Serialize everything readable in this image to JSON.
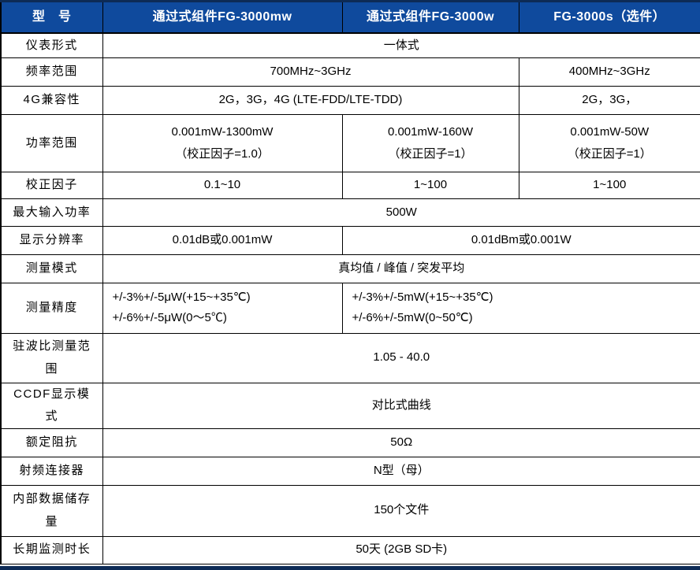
{
  "colors": {
    "header_bg": "#0f4a9d",
    "header_text": "#ffffff",
    "accent_navy": "#0d2b56",
    "border": "#000000",
    "body_text": "#000000"
  },
  "table": {
    "header": [
      "型　号",
      "通过式组件FG-3000mw",
      "通过式组件FG-3000w",
      "FG-3000s（选件）"
    ],
    "rows": [
      {
        "label": "仪表形式",
        "value": "一体式"
      },
      {
        "label": "频率范围",
        "value_main": "700MHz~3GHz",
        "value_opt": "400MHz~3GHz"
      },
      {
        "label": "4G兼容性",
        "value_main": "2G，3G，4G (LTE-FDD/LTE-TDD)",
        "value_opt": "2G，3G，"
      },
      {
        "label": "功率范围",
        "col2": {
          "line1": "0.001mW-1300mW",
          "line2": "（校正因子=1.0）"
        },
        "col3": {
          "line1": "0.001mW-160W",
          "line2": "（校正因子=1）"
        },
        "col4": {
          "line1": "0.001mW-50W",
          "line2": "（校正因子=1）"
        }
      },
      {
        "label": "校正因子",
        "col2": "0.1~10",
        "col3": "1~100",
        "col4": "1~100"
      },
      {
        "label": "最大输入功率",
        "value": "500W"
      },
      {
        "label": "显示分辨率",
        "col2": "0.01dB或0.001mW",
        "col34": "0.01dBm或0.001W"
      },
      {
        "label": "测量模式",
        "value": "真均值 / 峰值 / 突发平均"
      },
      {
        "label": "测量精度",
        "col2": {
          "line1": "+/-3%+/-5μW(+15~+35℃)",
          "line2": "+/-6%+/-5μW(0～5℃)"
        },
        "col34": {
          "line1": "+/-3%+/-5mW(+15~+35℃)",
          "line2": "+/-6%+/-5mW(0~50℃)"
        }
      },
      {
        "label": "驻波比测量范围",
        "value": "1.05 - 40.0"
      },
      {
        "label": "CCDF显示模式",
        "value": "对比式曲线"
      },
      {
        "label": "额定阻抗",
        "value": "50Ω"
      },
      {
        "label": "射频连接器",
        "value": "N型（母）"
      },
      {
        "label": "内部数据储存量",
        "value": "150个文件"
      },
      {
        "label": "长期监测时长",
        "value": "50天 (2GB SD卡)"
      }
    ]
  }
}
